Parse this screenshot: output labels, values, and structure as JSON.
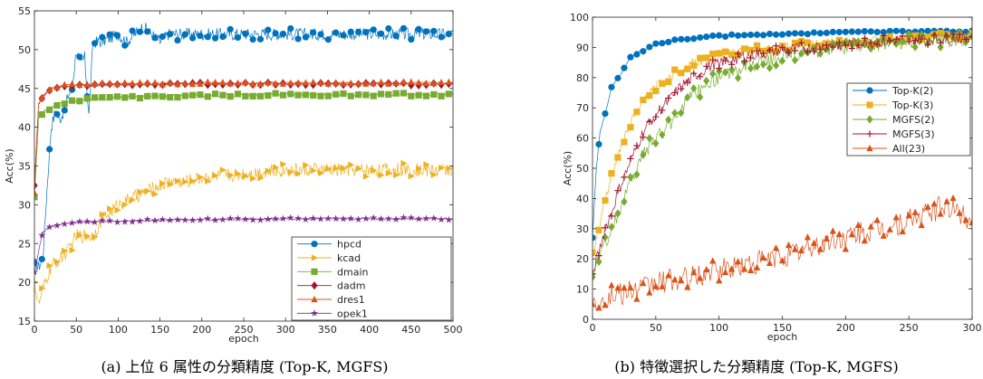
{
  "chart_data": [
    {
      "type": "line",
      "caption": "(a) 上位 6 属性の分類精度 (Top-K, MGFS)",
      "xlabel": "epoch",
      "ylabel": "Acc(%)",
      "xlim": [
        0,
        500
      ],
      "ylim": [
        15,
        55
      ],
      "xticks": [
        0,
        50,
        100,
        150,
        200,
        250,
        300,
        350,
        400,
        450,
        500
      ],
      "yticks": [
        15,
        20,
        25,
        30,
        35,
        40,
        45,
        50,
        55
      ],
      "grid": false,
      "legend": "bottom-right",
      "series": [
        {
          "name": "hpcd",
          "color": "#0072BD",
          "marker": "circle",
          "points": [
            [
              0,
              22.5
            ],
            [
              5,
              22
            ],
            [
              10,
              23
            ],
            [
              15,
              32
            ],
            [
              20,
              40
            ],
            [
              25,
              42
            ],
            [
              30,
              41
            ],
            [
              35,
              42
            ],
            [
              40,
              44
            ],
            [
              45,
              45
            ],
            [
              50,
              50
            ],
            [
              55,
              48
            ],
            [
              60,
              49
            ],
            [
              65,
              41.5
            ],
            [
              70,
              51
            ],
            [
              80,
              51
            ],
            [
              90,
              51.5
            ],
            [
              100,
              52
            ],
            [
              110,
              51
            ],
            [
              120,
              52
            ],
            [
              130,
              53
            ],
            [
              140,
              52
            ],
            [
              150,
              51
            ],
            [
              160,
              52
            ],
            [
              200,
              52
            ],
            [
              250,
              52
            ],
            [
              300,
              52
            ],
            [
              350,
              52
            ],
            [
              400,
              52
            ],
            [
              450,
              52
            ],
            [
              500,
              52
            ]
          ],
          "noise": 0.8
        },
        {
          "name": "kcad",
          "color": "#EDB120",
          "marker": "triangle-right",
          "points": [
            [
              0,
              20
            ],
            [
              5,
              17
            ],
            [
              10,
              19
            ],
            [
              20,
              22
            ],
            [
              30,
              23
            ],
            [
              40,
              24
            ],
            [
              50,
              26
            ],
            [
              60,
              26
            ],
            [
              70,
              26
            ],
            [
              80,
              28
            ],
            [
              90,
              29
            ],
            [
              100,
              30
            ],
            [
              120,
              31
            ],
            [
              140,
              32
            ],
            [
              160,
              33
            ],
            [
              180,
              33
            ],
            [
              200,
              33.5
            ],
            [
              250,
              34
            ],
            [
              300,
              34.5
            ],
            [
              350,
              34.5
            ],
            [
              400,
              34.5
            ],
            [
              450,
              34.5
            ],
            [
              500,
              34.5
            ]
          ],
          "noise": 0.9
        },
        {
          "name": "dmain",
          "color": "#77AC30",
          "marker": "square",
          "points": [
            [
              0,
              31
            ],
            [
              5,
              41
            ],
            [
              10,
              42
            ],
            [
              20,
              42.5
            ],
            [
              30,
              43
            ],
            [
              50,
              43.5
            ],
            [
              100,
              43.8
            ],
            [
              150,
              44
            ],
            [
              200,
              44.1
            ],
            [
              300,
              44.2
            ],
            [
              400,
              44.2
            ],
            [
              500,
              44.2
            ]
          ],
          "noise": 0.2
        },
        {
          "name": "dadm",
          "color": "#A2142F",
          "marker": "diamond",
          "points": [
            [
              0,
              32.5
            ],
            [
              5,
              43
            ],
            [
              10,
              44
            ],
            [
              20,
              45
            ],
            [
              30,
              45.2
            ],
            [
              50,
              45.4
            ],
            [
              100,
              45.5
            ],
            [
              200,
              45.6
            ],
            [
              300,
              45.6
            ],
            [
              400,
              45.6
            ],
            [
              500,
              45.5
            ]
          ],
          "noise": 0.15
        },
        {
          "name": "dres1",
          "color": "#D95319",
          "marker": "triangle-up",
          "points": [
            [
              0,
              31.5
            ],
            [
              5,
              43
            ],
            [
              10,
              44
            ],
            [
              20,
              45
            ],
            [
              30,
              45.3
            ],
            [
              50,
              45.5
            ],
            [
              100,
              45.6
            ],
            [
              200,
              45.7
            ],
            [
              300,
              45.7
            ],
            [
              400,
              45.7
            ],
            [
              500,
              45.7
            ]
          ],
          "noise": 0.15
        },
        {
          "name": "opek1",
          "color": "#7E2F8E",
          "marker": "star",
          "points": [
            [
              0,
              21.3
            ],
            [
              5,
              24
            ],
            [
              10,
              26.5
            ],
            [
              20,
              27.2
            ],
            [
              30,
              27.5
            ],
            [
              50,
              27.7
            ],
            [
              100,
              27.9
            ],
            [
              200,
              28.1
            ],
            [
              300,
              28.2
            ],
            [
              400,
              28.2
            ],
            [
              500,
              28.2
            ]
          ],
          "noise": 0.15
        }
      ]
    },
    {
      "type": "line",
      "caption": "(b) 特徴選択した分類精度 (Top-K, MGFS)",
      "xlabel": "epoch",
      "ylabel": "Acc(%)",
      "xlim": [
        0,
        300
      ],
      "ylim": [
        0,
        100
      ],
      "xticks": [
        0,
        50,
        100,
        150,
        200,
        250,
        300
      ],
      "yticks": [
        0,
        10,
        20,
        30,
        40,
        50,
        60,
        70,
        80,
        90,
        100
      ],
      "grid": false,
      "legend": "top-right",
      "series": [
        {
          "name": "Top-K(2)",
          "color": "#0072BD",
          "marker": "circle",
          "points": [
            [
              0,
              27
            ],
            [
              3,
              50
            ],
            [
              6,
              62
            ],
            [
              10,
              68
            ],
            [
              15,
              77
            ],
            [
              20,
              80
            ],
            [
              25,
              83
            ],
            [
              30,
              87
            ],
            [
              40,
              89
            ],
            [
              50,
              91
            ],
            [
              60,
              92
            ],
            [
              80,
              93
            ],
            [
              100,
              93.8
            ],
            [
              150,
              94.5
            ],
            [
              200,
              95
            ],
            [
              250,
              95.2
            ],
            [
              300,
              95.3
            ]
          ],
          "noise": 0.3
        },
        {
          "name": "Top-K(3)",
          "color": "#EDB120",
          "marker": "square",
          "points": [
            [
              0,
              22
            ],
            [
              5,
              30
            ],
            [
              10,
              40
            ],
            [
              15,
              47
            ],
            [
              20,
              54
            ],
            [
              25,
              60
            ],
            [
              30,
              65
            ],
            [
              40,
              72
            ],
            [
              50,
              77
            ],
            [
              60,
              80
            ],
            [
              70,
              83
            ],
            [
              80,
              85
            ],
            [
              100,
              87
            ],
            [
              120,
              89
            ],
            [
              150,
              90
            ],
            [
              200,
              92
            ],
            [
              250,
              93
            ],
            [
              300,
              94
            ]
          ],
          "noise": 1.5
        },
        {
          "name": "MGFS(2)",
          "color": "#77AC30",
          "marker": "diamond",
          "points": [
            [
              0,
              14
            ],
            [
              5,
              20
            ],
            [
              10,
              25
            ],
            [
              15,
              30
            ],
            [
              20,
              35
            ],
            [
              30,
              45
            ],
            [
              40,
              55
            ],
            [
              50,
              60
            ],
            [
              60,
              64
            ],
            [
              70,
              70
            ],
            [
              80,
              74
            ],
            [
              90,
              78
            ],
            [
              100,
              80
            ],
            [
              120,
              83
            ],
            [
              150,
              87
            ],
            [
              180,
              89
            ],
            [
              200,
              90
            ],
            [
              250,
              92
            ],
            [
              300,
              93
            ]
          ],
          "noise": 2.5
        },
        {
          "name": "MGFS(3)",
          "color": "#A2142F",
          "marker": "plus",
          "points": [
            [
              0,
              15
            ],
            [
              5,
              22
            ],
            [
              10,
              30
            ],
            [
              15,
              35
            ],
            [
              20,
              42
            ],
            [
              30,
              52
            ],
            [
              40,
              62
            ],
            [
              50,
              68
            ],
            [
              60,
              72
            ],
            [
              70,
              77
            ],
            [
              80,
              80
            ],
            [
              90,
              83
            ],
            [
              100,
              85
            ],
            [
              120,
              87
            ],
            [
              150,
              89
            ],
            [
              200,
              91
            ],
            [
              250,
              92.5
            ],
            [
              300,
              93.5
            ]
          ],
          "noise": 2.0
        },
        {
          "name": "All(23)",
          "color": "#D95319",
          "marker": "triangle-up",
          "points": [
            [
              0,
              5
            ],
            [
              5,
              6
            ],
            [
              10,
              7
            ],
            [
              20,
              8
            ],
            [
              30,
              9
            ],
            [
              40,
              10
            ],
            [
              50,
              12
            ],
            [
              60,
              13
            ],
            [
              70,
              13
            ],
            [
              80,
              14
            ],
            [
              90,
              15
            ],
            [
              100,
              16
            ],
            [
              120,
              18
            ],
            [
              140,
              20
            ],
            [
              160,
              22
            ],
            [
              180,
              25
            ],
            [
              200,
              27
            ],
            [
              220,
              29
            ],
            [
              240,
              31
            ],
            [
              260,
              34
            ],
            [
              280,
              38
            ],
            [
              290,
              35
            ],
            [
              300,
              33
            ]
          ],
          "noise": 4.0
        }
      ]
    }
  ]
}
